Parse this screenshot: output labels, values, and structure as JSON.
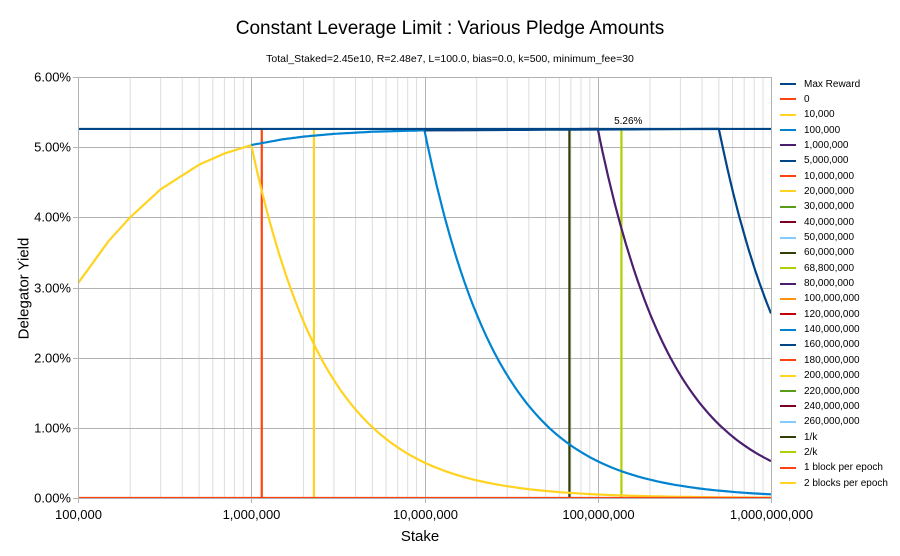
{
  "chart_data": {
    "type": "line",
    "title": "Constant Leverage Limit : Various Pledge Amounts",
    "subtitle": "Total_Staked=2.45e10, R=2.48e7, L=100.0, bias=0.0, k=500, minimum_fee=30",
    "xlabel": "Stake",
    "ylabel": "Delegator Yield",
    "x_scale": "log",
    "xlim": [
      100000,
      1000000000
    ],
    "ylim": [
      0,
      0.06
    ],
    "x_ticks": [
      "100,000",
      "1,000,000",
      "10,000,000",
      "100,000,000",
      "1,000,000,000"
    ],
    "y_ticks": [
      "0.00%",
      "1.00%",
      "2.00%",
      "3.00%",
      "4.00%",
      "5.00%",
      "6.00%"
    ],
    "grid": true,
    "legend_position": "right",
    "max_yield": 0.0526,
    "annotation": "5.26%",
    "series": [
      {
        "name": "Max Reward",
        "color": "#004586"
      },
      {
        "name": "0",
        "color": "#ff420e"
      },
      {
        "name": "10,000",
        "color": "#ffd320"
      },
      {
        "name": "100,000",
        "color": "#0084d1"
      },
      {
        "name": "1,000,000",
        "color": "#4b1f6f"
      },
      {
        "name": "5,000,000",
        "color": "#004586"
      },
      {
        "name": "10,000,000",
        "color": "#ff420e"
      },
      {
        "name": "20,000,000",
        "color": "#ffd320"
      },
      {
        "name": "30,000,000",
        "color": "#579d1c"
      },
      {
        "name": "40,000,000",
        "color": "#7e0021"
      },
      {
        "name": "50,000,000",
        "color": "#83caff"
      },
      {
        "name": "60,000,000",
        "color": "#314004"
      },
      {
        "name": "68,800,000",
        "color": "#aecf00"
      },
      {
        "name": "80,000,000",
        "color": "#4b1f6f"
      },
      {
        "name": "100,000,000",
        "color": "#ff950e"
      },
      {
        "name": "120,000,000",
        "color": "#c5000b"
      },
      {
        "name": "140,000,000",
        "color": "#0084d1"
      },
      {
        "name": "160,000,000",
        "color": "#004586"
      },
      {
        "name": "180,000,000",
        "color": "#ff420e"
      },
      {
        "name": "200,000,000",
        "color": "#ffd320"
      },
      {
        "name": "220,000,000",
        "color": "#579d1c"
      },
      {
        "name": "240,000,000",
        "color": "#7e0021"
      },
      {
        "name": "260,000,000",
        "color": "#83caff"
      },
      {
        "name": "1/k",
        "color": "#314004"
      },
      {
        "name": "2/k",
        "color": "#aecf00"
      },
      {
        "name": "1 block per epoch",
        "color": "#ff420e"
      },
      {
        "name": "2 blocks per epoch",
        "color": "#ffd320"
      }
    ],
    "vertical_markers": [
      {
        "name": "1/k",
        "x": 68600000,
        "color": "#314004"
      },
      {
        "name": "2/k",
        "x": 137000000,
        "color": "#aecf00"
      },
      {
        "name": "1 block per epoch",
        "x": 1150000,
        "color": "#ff420e"
      },
      {
        "name": "2 blocks per epoch",
        "x": 2300000,
        "color": "#ffd320"
      }
    ],
    "curves": [
      {
        "name": "10,000",
        "color": "#ffd320",
        "saturation": 1000000,
        "points": [
          [
            100000,
            0.0306
          ],
          [
            150000,
            0.0366
          ],
          [
            200000,
            0.04
          ],
          [
            300000,
            0.044
          ],
          [
            500000,
            0.0475
          ],
          [
            700000,
            0.0491
          ],
          [
            1000000,
            0.0503
          ],
          [
            1500000,
            0.0336
          ],
          [
            2000000,
            0.0252
          ],
          [
            3000000,
            0.0168
          ],
          [
            5000000,
            0.0101
          ],
          [
            10000000,
            0.00505
          ],
          [
            30000000,
            0.00168
          ],
          [
            100000000,
            0.000505
          ],
          [
            300000000,
            0.000168
          ],
          [
            1000000000,
            5.05e-05
          ]
        ]
      },
      {
        "name": "100,000",
        "color": "#0084d1",
        "points": [
          [
            1000000,
            0.0503
          ],
          [
            1500000,
            0.0511
          ],
          [
            2000000,
            0.0515
          ],
          [
            3000000,
            0.0519
          ],
          [
            5000000,
            0.0522
          ],
          [
            10000000,
            0.0524
          ],
          [
            15000000,
            0.0349
          ],
          [
            20000000,
            0.0262
          ],
          [
            30000000,
            0.0175
          ],
          [
            50000000,
            0.0105
          ],
          [
            70000000,
            0.00749
          ],
          [
            100000000,
            0.00524
          ],
          [
            150000000,
            0.00349
          ],
          [
            200000000,
            0.00262
          ],
          [
            300000000,
            0.00175
          ],
          [
            500000000,
            0.00105
          ],
          [
            1000000000,
            0.000524
          ]
        ]
      },
      {
        "name": "1,000,000",
        "color": "#4b1f6f",
        "points": [
          [
            10000000,
            0.0524
          ],
          [
            100000000,
            0.0526
          ],
          [
            150000000,
            0.0351
          ],
          [
            200000000,
            0.0263
          ],
          [
            300000000,
            0.0175
          ],
          [
            500000000,
            0.0105
          ],
          [
            700000000,
            0.00751
          ],
          [
            1000000000,
            0.00526
          ]
        ]
      },
      {
        "name": "5,000,000",
        "color": "#004586",
        "points": [
          [
            10000000,
            0.0524
          ],
          [
            500000000,
            0.0526
          ],
          [
            700000000,
            0.0376
          ],
          [
            1000000000,
            0.0263
          ]
        ]
      },
      {
        "name": "0",
        "color": "#ff420e",
        "points": [
          [
            100000,
            0
          ],
          [
            1000000000,
            0
          ]
        ]
      }
    ]
  }
}
